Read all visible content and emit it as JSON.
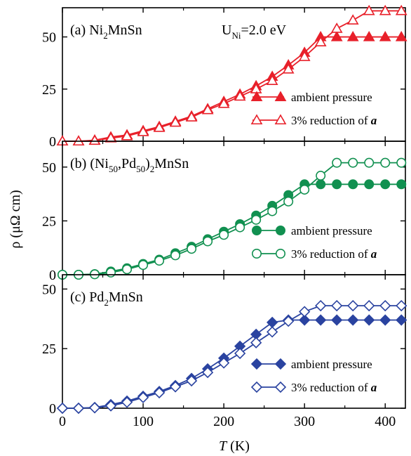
{
  "figure": {
    "ylabel": "ρ (μΩ cm)",
    "xlabel_var": "T",
    "xlabel_unit": " (K)",
    "xlim": [
      0,
      425
    ],
    "xticks": [
      0,
      100,
      200,
      300,
      400
    ]
  },
  "chart_data": [
    {
      "type": "line",
      "panel": "(a)",
      "title_parts": [
        {
          "t": "(a)  Ni"
        },
        {
          "t": "2",
          "sub": true
        },
        {
          "t": "MnSn"
        }
      ],
      "annotation_parts": [
        {
          "t": "U"
        },
        {
          "t": "Ni",
          "sub": true
        },
        {
          "t": "=2.0 eV"
        }
      ],
      "xlim": [
        0,
        425
      ],
      "ylim": [
        0,
        64
      ],
      "yticks": [
        0,
        25,
        50
      ],
      "color": "#e8202a",
      "series": [
        {
          "name": "ambient pressure",
          "marker": "triangle",
          "filled": true,
          "x": [
            0,
            20,
            40,
            60,
            80,
            100,
            120,
            140,
            160,
            180,
            200,
            220,
            240,
            260,
            280,
            300,
            320,
            340,
            360,
            380,
            400,
            420
          ],
          "y": [
            0,
            0,
            0.5,
            2,
            3,
            5,
            7,
            9.5,
            12,
            15.5,
            19,
            22.5,
            26.5,
            31,
            36.5,
            42.5,
            50,
            50,
            50,
            50,
            50,
            50
          ]
        },
        {
          "name": "3% reduction of ",
          "name_emph": "a",
          "marker": "triangle",
          "filled": false,
          "x": [
            0,
            20,
            40,
            60,
            80,
            100,
            120,
            140,
            160,
            180,
            200,
            220,
            240,
            260,
            280,
            300,
            320,
            340,
            360,
            380,
            400,
            420
          ],
          "y": [
            0,
            0,
            0.3,
            1.5,
            2.5,
            4.5,
            6.5,
            9,
            11.5,
            15,
            18,
            21.5,
            25,
            29,
            34.5,
            40.5,
            47.5,
            54,
            58,
            62.5,
            62.5,
            62.5
          ]
        }
      ]
    },
    {
      "type": "line",
      "panel": "(b)",
      "title_parts": [
        {
          "t": "(b)  (Ni"
        },
        {
          "t": "50",
          "sub": true
        },
        {
          "t": ",Pd"
        },
        {
          "t": "50",
          "sub": true
        },
        {
          "t": ")"
        },
        {
          "t": "2",
          "sub": true
        },
        {
          "t": "MnSn"
        }
      ],
      "xlim": [
        0,
        425
      ],
      "ylim": [
        0,
        62
      ],
      "yticks": [
        0,
        25,
        50
      ],
      "color": "#119050",
      "series": [
        {
          "name": "ambient pressure",
          "marker": "circle",
          "filled": true,
          "x": [
            0,
            20,
            40,
            60,
            80,
            100,
            120,
            140,
            160,
            180,
            200,
            220,
            240,
            260,
            280,
            300,
            320,
            340,
            360,
            380,
            400,
            420
          ],
          "y": [
            0,
            0,
            0.3,
            1.5,
            3,
            5,
            7,
            10,
            13,
            16.5,
            20,
            23.5,
            27.5,
            32,
            37,
            42,
            42,
            42,
            42,
            42,
            42,
            42
          ]
        },
        {
          "name": "3% reduction of ",
          "name_emph": "a",
          "marker": "circle",
          "filled": false,
          "x": [
            0,
            20,
            40,
            60,
            80,
            100,
            120,
            140,
            160,
            180,
            200,
            220,
            240,
            260,
            280,
            300,
            320,
            340,
            360,
            380,
            400,
            420
          ],
          "y": [
            0,
            0,
            0.2,
            1,
            2.5,
            4.5,
            6.5,
            9,
            12,
            15.5,
            18.5,
            22,
            25.5,
            29.5,
            34,
            39.5,
            46,
            52,
            52,
            52,
            52,
            52
          ]
        }
      ]
    },
    {
      "type": "line",
      "panel": "(c)",
      "title_parts": [
        {
          "t": "(c)  Pd"
        },
        {
          "t": "2",
          "sub": true
        },
        {
          "t": "MnSn"
        }
      ],
      "xlim": [
        0,
        425
      ],
      "ylim": [
        0,
        56
      ],
      "yticks": [
        0,
        25,
        50
      ],
      "color": "#2a43a0",
      "series": [
        {
          "name": "ambient pressure",
          "marker": "diamond",
          "filled": true,
          "x": [
            0,
            20,
            40,
            60,
            80,
            100,
            120,
            140,
            160,
            180,
            200,
            220,
            240,
            260,
            280,
            300,
            320,
            340,
            360,
            380,
            400,
            420
          ],
          "y": [
            0,
            0,
            0.3,
            1.5,
            3,
            5,
            7,
            9.5,
            12.5,
            16.5,
            21,
            26,
            31,
            36,
            37,
            37,
            37,
            37,
            37,
            37,
            37,
            37
          ]
        },
        {
          "name": "3% reduction of ",
          "name_emph": "a",
          "marker": "diamond",
          "filled": false,
          "x": [
            0,
            20,
            40,
            60,
            80,
            100,
            120,
            140,
            160,
            180,
            200,
            220,
            240,
            260,
            280,
            300,
            320,
            340,
            360,
            380,
            400,
            420
          ],
          "y": [
            0,
            0,
            0.2,
            1,
            2.5,
            4.5,
            6.5,
            9,
            11.5,
            15,
            19,
            23,
            27.5,
            32,
            36.5,
            40.5,
            43,
            43,
            43,
            43,
            43,
            43
          ]
        }
      ]
    }
  ]
}
